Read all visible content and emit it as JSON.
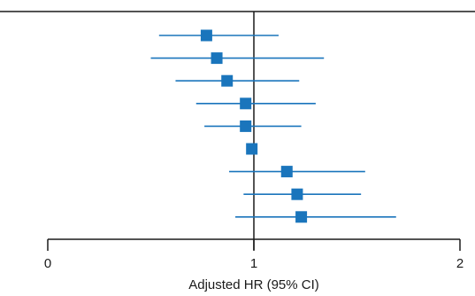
{
  "chart_data": {
    "type": "forest",
    "title": "",
    "xlabel": "Adjusted HR (95% CI)",
    "xlim": [
      0,
      2
    ],
    "xticks": [
      0,
      1,
      2
    ],
    "xtick_labels": [
      "0",
      "1",
      "2"
    ],
    "reference_line": 1,
    "grid": false,
    "series": [
      {
        "values": [
          {
            "hr": 0.77,
            "lower": 0.54,
            "upper": 1.12
          },
          {
            "hr": 0.82,
            "lower": 0.5,
            "upper": 1.34
          },
          {
            "hr": 0.87,
            "lower": 0.62,
            "upper": 1.22
          },
          {
            "hr": 0.96,
            "lower": 0.72,
            "upper": 1.3
          },
          {
            "hr": 0.96,
            "lower": 0.76,
            "upper": 1.23
          },
          {
            "hr": 0.99,
            "lower": 0.99,
            "upper": 0.99
          },
          {
            "hr": 1.16,
            "lower": 0.88,
            "upper": 1.54
          },
          {
            "hr": 1.21,
            "lower": 0.95,
            "upper": 1.52
          },
          {
            "hr": 1.23,
            "lower": 0.91,
            "upper": 1.69
          }
        ]
      }
    ],
    "colors": {
      "marker": "#1a75bc",
      "axis": "#1a1a1a"
    }
  }
}
